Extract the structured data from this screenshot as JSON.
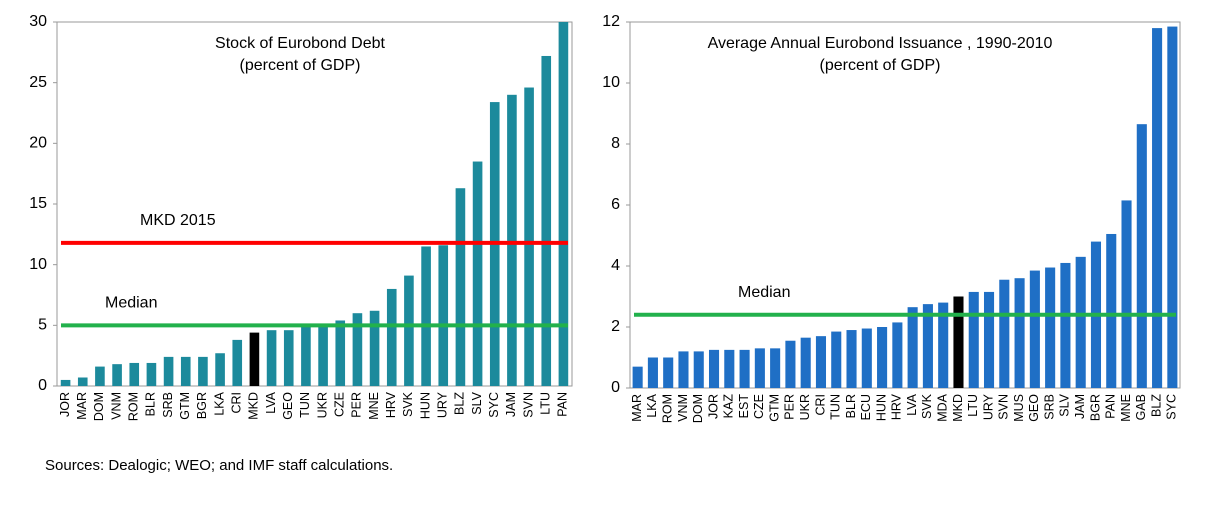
{
  "chart_data": [
    {
      "type": "bar",
      "title": "Stock of Eurobond Debt",
      "subtitle": "(percent of GDP)",
      "categories": [
        "JOR",
        "MAR",
        "DOM",
        "VNM",
        "ROM",
        "BLR",
        "SRB",
        "GTM",
        "BGR",
        "LKA",
        "CRI",
        "MKD",
        "LVA",
        "GEO",
        "TUN",
        "UKR",
        "CZE",
        "PER",
        "MNE",
        "HRV",
        "SVK",
        "HUN",
        "URY",
        "BLZ",
        "SLV",
        "SYC",
        "JAM",
        "SVN",
        "LTU",
        "PAN"
      ],
      "values": [
        0.5,
        0.7,
        1.6,
        1.8,
        1.9,
        1.9,
        2.4,
        2.4,
        2.4,
        2.7,
        3.8,
        4.4,
        4.6,
        4.6,
        4.9,
        5.0,
        5.4,
        6.0,
        6.2,
        8.0,
        9.1,
        11.5,
        11.6,
        16.3,
        18.5,
        23.4,
        24.0,
        24.6,
        27.2,
        30
      ],
      "color": "#1c8a9c",
      "highlight_category": "MKD",
      "highlight_color": "#000000",
      "reference_lines": [
        {
          "label": "MKD 2015",
          "value": 11.8,
          "color": "#ff0000"
        },
        {
          "label": "Median",
          "value": 5.0,
          "color": "#22b14c"
        }
      ],
      "ylim": [
        0,
        30
      ],
      "yticks": [
        0,
        5,
        10,
        15,
        20,
        25,
        30
      ],
      "grid": false
    },
    {
      "type": "bar",
      "title": "Average Annual Eurobond Issuance , 1990-2010",
      "subtitle": "(percent of GDP)",
      "categories": [
        "MAR",
        "LKA",
        "ROM",
        "VNM",
        "DOM",
        "JOR",
        "KAZ",
        "EST",
        "CZE",
        "GTM",
        "PER",
        "UKR",
        "CRI",
        "TUN",
        "BLR",
        "ECU",
        "HUN",
        "HRV",
        "LVA",
        "SVK",
        "MDA",
        "MKD",
        "LTU",
        "URY",
        "SVN",
        "MUS",
        "GEO",
        "SRB",
        "SLV",
        "JAM",
        "BGR",
        "PAN",
        "MNE",
        "GAB",
        "BLZ",
        "SYC"
      ],
      "values": [
        0.7,
        1.0,
        1.0,
        1.2,
        1.2,
        1.25,
        1.25,
        1.25,
        1.3,
        1.3,
        1.55,
        1.65,
        1.7,
        1.85,
        1.9,
        1.95,
        2.0,
        2.15,
        2.65,
        2.75,
        2.8,
        3.0,
        3.15,
        3.15,
        3.55,
        3.6,
        3.85,
        3.95,
        4.1,
        4.3,
        4.8,
        5.05,
        6.15,
        8.65,
        11.8,
        11.85
      ],
      "color": "#1f6fc5",
      "highlight_category": "MKD",
      "highlight_color": "#000000",
      "reference_lines": [
        {
          "label": "Median",
          "value": 2.4,
          "color": "#22b14c"
        }
      ],
      "ylim": [
        0,
        12
      ],
      "yticks": [
        0,
        2,
        4,
        6,
        8,
        10,
        12
      ],
      "grid": false
    }
  ],
  "source": "Sources: Dealogic; WEO; and IMF staff calculations."
}
